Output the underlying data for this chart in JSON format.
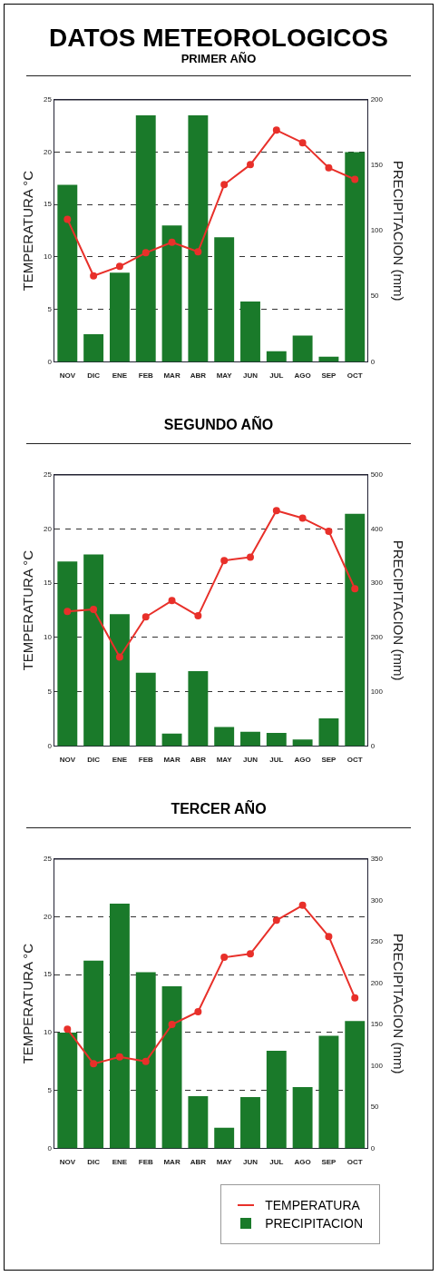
{
  "chart_data": [
    {
      "type": "bar",
      "title": "DATOS METEOROLOGICOS",
      "subtitle": "PRIMER AÑO",
      "categories": [
        "NOV",
        "DIC",
        "ENE",
        "FEB",
        "MAR",
        "ABR",
        "MAY",
        "JUN",
        "JUL",
        "AGO",
        "SEP",
        "OCT"
      ],
      "series": [
        {
          "axis": "y2",
          "color": "#1a7a2a",
          "values": [
            135,
            21,
            68,
            188,
            104,
            188,
            95,
            46,
            8,
            20,
            4,
            160
          ]
        },
        {
          "type": "line",
          "color": "#e8302a",
          "values": [
            13.6,
            8.2,
            9.1,
            10.4,
            11.4,
            10.5,
            16.9,
            18.8,
            22.1,
            20.9,
            18.5,
            17.4
          ]
        }
      ],
      "ylabel": "TEMPERATURA °C",
      "y2label": "PRECIPITACION (mm)",
      "ylim": [
        0,
        25
      ],
      "yticks": [
        0,
        5,
        10,
        15,
        20,
        25
      ],
      "y2lim": [
        0,
        200
      ],
      "y2ticks": [
        0,
        50,
        100,
        150,
        200
      ],
      "grid": "y",
      "marker": "circle",
      "legend": false
    },
    {
      "type": "bar",
      "title": "SEGUNDO AÑO",
      "categories": [
        "NOV",
        "DIC",
        "ENE",
        "FEB",
        "MAR",
        "ABR",
        "MAY",
        "JUN",
        "JUL",
        "AGO",
        "SEP",
        "OCT"
      ],
      "series": [
        {
          "axis": "y2",
          "color": "#1a7a2a",
          "values": [
            340,
            353,
            243,
            135,
            23,
            138,
            35,
            26,
            24,
            12,
            51,
            428
          ]
        },
        {
          "type": "line",
          "color": "#e8302a",
          "values": [
            12.4,
            12.6,
            8.2,
            11.9,
            13.4,
            12.0,
            17.1,
            17.4,
            21.7,
            21.0,
            19.8,
            14.5
          ]
        }
      ],
      "ylabel": "TEMPERATURA °C",
      "y2label": "PRECIPITACION (mm)",
      "ylim": [
        0,
        25
      ],
      "yticks": [
        0,
        5,
        10,
        15,
        20,
        25
      ],
      "y2lim": [
        0,
        500
      ],
      "y2ticks": [
        0,
        100,
        200,
        300,
        400,
        500
      ],
      "grid": "y",
      "marker": "circle",
      "legend": false
    },
    {
      "type": "bar",
      "title": "TERCER AÑO",
      "categories": [
        "NOV",
        "DIC",
        "ENE",
        "FEB",
        "MAR",
        "ABR",
        "MAY",
        "JUN",
        "JUL",
        "AGO",
        "SEP",
        "OCT"
      ],
      "series": [
        {
          "axis": "y2",
          "name": "PRECIPITACION",
          "color": "#1a7a2a",
          "values": [
            140,
            227,
            296,
            213,
            196,
            63,
            25,
            62,
            118,
            74,
            136,
            154
          ]
        },
        {
          "type": "line",
          "name": "TEMPERATURA",
          "color": "#e8302a",
          "values": [
            10.3,
            7.3,
            7.9,
            7.5,
            10.7,
            11.8,
            16.5,
            16.8,
            19.7,
            21.0,
            18.3,
            13.0
          ]
        }
      ],
      "ylabel": "TEMPERATURA °C",
      "y2label": "PRECIPITACION (mm)",
      "ylim": [
        0,
        25
      ],
      "yticks": [
        0,
        5,
        10,
        15,
        20,
        25
      ],
      "y2lim": [
        0,
        350
      ],
      "y2ticks": [
        0,
        50,
        100,
        150,
        200,
        250,
        300,
        350
      ],
      "grid": "y",
      "marker": "circle",
      "legend": "bottom right"
    }
  ]
}
